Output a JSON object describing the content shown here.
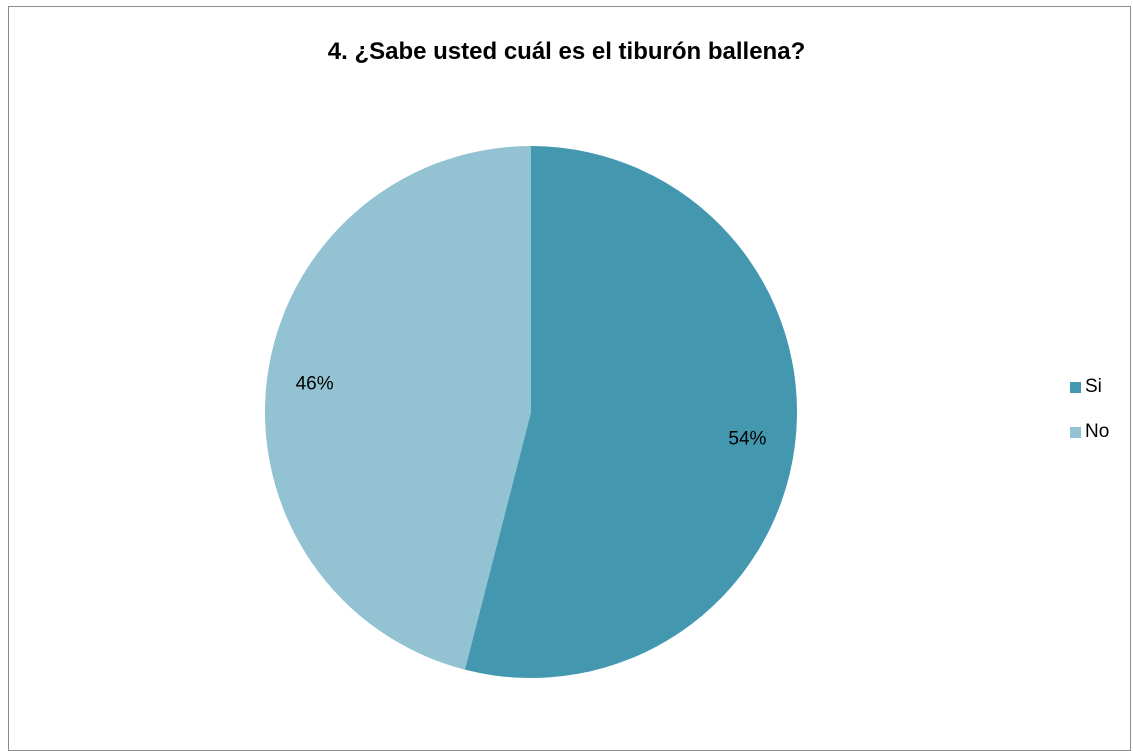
{
  "chart_data": {
    "type": "pie",
    "title": "4. ¿Sabe usted cuál es el tiburón ballena?",
    "categories": [
      "Si",
      "No"
    ],
    "values": [
      54,
      46
    ],
    "labels": [
      "54%",
      "46%"
    ],
    "colors": [
      "#4398b0",
      "#93c2d3"
    ],
    "legend_position": "right"
  }
}
